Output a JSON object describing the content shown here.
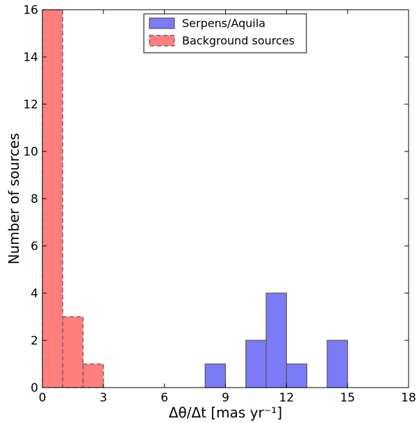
{
  "chart_data": {
    "type": "bar",
    "title": "",
    "xlabel": "Δθ/Δt [mas yr⁻¹]",
    "ylabel": "Number of sources",
    "xlim": [
      0,
      18
    ],
    "ylim": [
      0,
      16
    ],
    "xticks": [
      0,
      3,
      6,
      9,
      12,
      15,
      18
    ],
    "yticks": [
      0,
      2,
      4,
      6,
      8,
      10,
      12,
      14,
      16
    ],
    "bin_width": 1,
    "grid": false,
    "legend_position": "top-center",
    "series": [
      {
        "name": "Serpens/Aquila",
        "color": "#7b7bf7",
        "edge_color": "#555555",
        "line_style": "solid",
        "bins": [
          {
            "x0": 8,
            "x1": 9,
            "count": 1
          },
          {
            "x0": 10,
            "x1": 11,
            "count": 2
          },
          {
            "x0": 11,
            "x1": 12,
            "count": 4
          },
          {
            "x0": 12,
            "x1": 13,
            "count": 1
          },
          {
            "x0": 14,
            "x1": 15,
            "count": 2
          }
        ]
      },
      {
        "name": "Background sources",
        "color": "#ff7f7f",
        "edge_color": "#555555",
        "line_style": "dashed",
        "bins": [
          {
            "x0": 0,
            "x1": 1,
            "count": 16
          },
          {
            "x0": 1,
            "x1": 2,
            "count": 3
          },
          {
            "x0": 2,
            "x1": 3,
            "count": 1
          }
        ]
      }
    ]
  }
}
